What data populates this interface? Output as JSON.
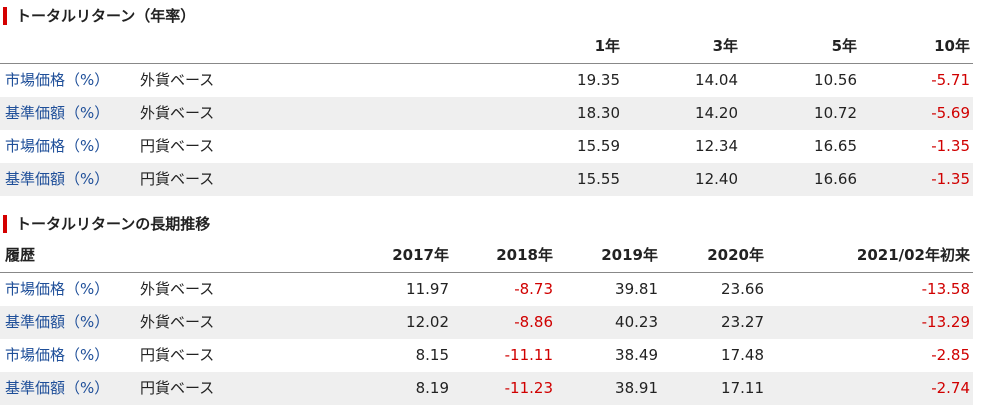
{
  "sections": [
    {
      "title": "トータルリターン（年率）",
      "columns": [
        "1年",
        "3年",
        "5年",
        "10年"
      ],
      "rows": [
        {
          "label": "市場価格（%）",
          "basis": "外貨ベース",
          "values": [
            "19.35",
            "14.04",
            "10.56",
            "-5.71"
          ]
        },
        {
          "label": "基準価額（%）",
          "basis": "外貨ベース",
          "values": [
            "18.30",
            "14.20",
            "10.72",
            "-5.69"
          ]
        },
        {
          "label": "市場価格（%）",
          "basis": "円貨ベース",
          "values": [
            "15.59",
            "12.34",
            "16.65",
            "-1.35"
          ]
        },
        {
          "label": "基準価額（%）",
          "basis": "円貨ベース",
          "values": [
            "15.55",
            "12.40",
            "16.66",
            "-1.35"
          ]
        }
      ]
    },
    {
      "title": "トータルリターンの長期推移",
      "header_label": "履歴",
      "columns": [
        "2017年",
        "2018年",
        "2019年",
        "2020年",
        "2021/02年初来"
      ],
      "rows": [
        {
          "label": "市場価格（%）",
          "basis": "外貨ベース",
          "values": [
            "11.97",
            "-8.73",
            "39.81",
            "23.66",
            "-13.58"
          ]
        },
        {
          "label": "基準価額（%）",
          "basis": "外貨ベース",
          "values": [
            "12.02",
            "-8.86",
            "40.23",
            "23.27",
            "-13.29"
          ]
        },
        {
          "label": "市場価格（%）",
          "basis": "円貨ベース",
          "values": [
            "8.15",
            "-11.11",
            "38.49",
            "17.48",
            "-2.85"
          ]
        },
        {
          "label": "基準価額（%）",
          "basis": "円貨ベース",
          "values": [
            "8.19",
            "-11.23",
            "38.91",
            "17.11",
            "-2.74"
          ]
        }
      ]
    }
  ]
}
